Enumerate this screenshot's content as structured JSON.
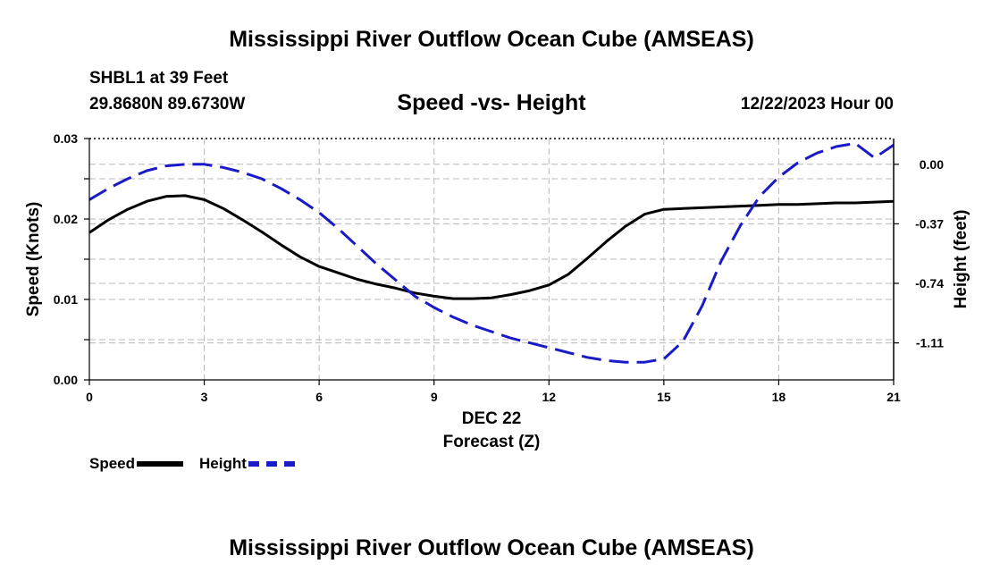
{
  "header": {
    "title": "Mississippi River Outflow Ocean Cube (AMSEAS)",
    "station": "SHBL1 at 39 Feet",
    "coords": "29.8680N  89.6730W",
    "subtitle": "Speed -vs- Height",
    "datetime": "12/22/2023 Hour 00"
  },
  "footer": {
    "title": "Mississippi River Outflow Ocean Cube (AMSEAS)"
  },
  "legend": {
    "speed": "Speed",
    "height": "Height"
  },
  "colors": {
    "speed": "#000000",
    "height": "#1a1ac8",
    "grid": "#b8b8b8"
  },
  "chart_data": {
    "type": "line",
    "title": "Speed -vs- Height",
    "xlabel": "Forecast (Z)",
    "xsublabel": "DEC 22",
    "ylabel_left": "Speed (Knots)",
    "ylabel_right": "Height (feet)",
    "xlim": [
      0,
      21
    ],
    "x_ticks": [
      0,
      3,
      6,
      9,
      12,
      15,
      18,
      21
    ],
    "ylim_left": [
      0,
      0.03
    ],
    "y_ticks_left": [
      0,
      0.005,
      0.01,
      0.015,
      0.02,
      0.025,
      0.03
    ],
    "y_tick_labels_left": [
      "0.00",
      "",
      "0.01",
      "",
      "0.02",
      "",
      "0.03"
    ],
    "ylim_right": [
      -1.34,
      0.16
    ],
    "y_ticks_right": [
      0.0,
      -0.37,
      -0.74,
      -1.11
    ],
    "y_tick_labels_right": [
      "0.00",
      "-0.37",
      "-0.74",
      "-1.11"
    ],
    "grid": true,
    "series": [
      {
        "name": "Speed",
        "axis": "left",
        "style": "solid",
        "x": [
          0,
          0.5,
          1,
          1.5,
          2,
          2.5,
          3,
          3.5,
          4,
          4.5,
          5,
          5.5,
          6,
          6.5,
          7,
          7.5,
          8,
          8.5,
          9,
          9.5,
          10,
          10.5,
          11,
          11.5,
          12,
          12.5,
          13,
          13.5,
          14,
          14.5,
          15,
          15.5,
          16,
          16.5,
          17,
          17.5,
          18,
          18.5,
          19,
          19.5,
          20,
          20.5,
          21
        ],
        "values": [
          0.0183,
          0.0199,
          0.0212,
          0.0222,
          0.0228,
          0.0229,
          0.0224,
          0.0213,
          0.0199,
          0.0184,
          0.0168,
          0.0153,
          0.0141,
          0.0133,
          0.0125,
          0.0119,
          0.0114,
          0.0108,
          0.0104,
          0.0101,
          0.0101,
          0.0102,
          0.0106,
          0.0111,
          0.0118,
          0.0131,
          0.0151,
          0.0172,
          0.0191,
          0.0206,
          0.0212,
          0.0213,
          0.0214,
          0.0215,
          0.0216,
          0.0217,
          0.0218,
          0.0218,
          0.0219,
          0.022,
          0.022,
          0.0221,
          0.0222
        ]
      },
      {
        "name": "Height",
        "axis": "right",
        "style": "dashed",
        "x": [
          0,
          0.5,
          1,
          1.5,
          2,
          2.5,
          3,
          3.5,
          4,
          4.5,
          5,
          5.5,
          6,
          6.5,
          7,
          7.5,
          8,
          8.5,
          9,
          9.5,
          10,
          10.5,
          11,
          11.5,
          12,
          12.5,
          13,
          13.5,
          14,
          14.5,
          15,
          15.5,
          16,
          16.5,
          17,
          17.5,
          18,
          18.5,
          19,
          19.5,
          20,
          20.5,
          21
        ],
        "values": [
          -0.22,
          -0.15,
          -0.09,
          -0.04,
          -0.01,
          0.0,
          0.0,
          -0.02,
          -0.05,
          -0.09,
          -0.15,
          -0.22,
          -0.3,
          -0.4,
          -0.51,
          -0.62,
          -0.72,
          -0.82,
          -0.89,
          -0.95,
          -1.0,
          -1.04,
          -1.08,
          -1.11,
          -1.14,
          -1.17,
          -1.2,
          -1.22,
          -1.23,
          -1.23,
          -1.21,
          -1.1,
          -0.88,
          -0.6,
          -0.38,
          -0.2,
          -0.08,
          0.01,
          0.07,
          0.11,
          0.13,
          0.04,
          0.12
        ]
      }
    ]
  }
}
